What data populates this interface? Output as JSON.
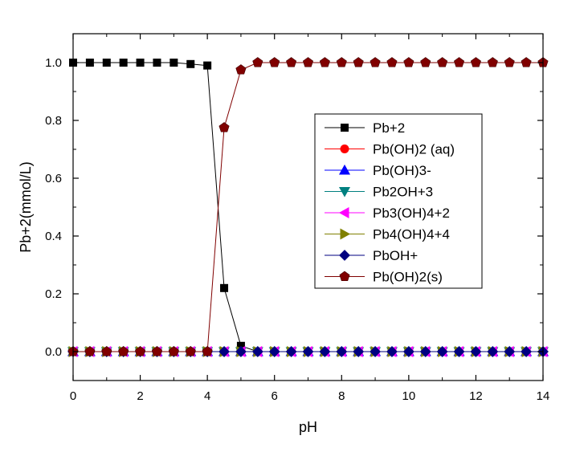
{
  "chart_data": {
    "type": "line",
    "title": "",
    "xlabel": "pH",
    "ylabel": "Pb+2(mmol/L)",
    "xlim": [
      0,
      14
    ],
    "ylim": [
      -0.1,
      1.1
    ],
    "x_ticks": [
      "0",
      "2",
      "4",
      "6",
      "8",
      "10",
      "12",
      "14"
    ],
    "y_ticks": [
      "0.0",
      "0.2",
      "0.4",
      "0.6",
      "0.8",
      "1.0"
    ],
    "grid": false,
    "legend_position": "center-right",
    "x": [
      0,
      0.5,
      1,
      1.5,
      2,
      2.5,
      3,
      3.5,
      4,
      4.5,
      5,
      5.5,
      6,
      6.5,
      7,
      7.5,
      8,
      8.5,
      9,
      9.5,
      10,
      10.5,
      11,
      11.5,
      12,
      12.5,
      13,
      13.5,
      14
    ],
    "series": [
      {
        "name": "Pb+2",
        "marker": "square",
        "color": "#000000",
        "values": [
          1.0,
          1.0,
          1.0,
          1.0,
          1.0,
          1.0,
          1.0,
          0.995,
          0.99,
          0.22,
          0.02,
          0,
          0,
          0,
          0,
          0,
          0,
          0,
          0,
          0,
          0,
          0,
          0,
          0,
          0,
          0,
          0,
          0,
          0
        ]
      },
      {
        "name": "Pb(OH)2 (aq)",
        "marker": "circle",
        "color": "#ff0000",
        "values": [
          0,
          0,
          0,
          0,
          0,
          0,
          0,
          0,
          0,
          0,
          0,
          0,
          0,
          0,
          0,
          0,
          0,
          0,
          0,
          0,
          0,
          0,
          0,
          0,
          0,
          0,
          0,
          0,
          0
        ]
      },
      {
        "name": "Pb(OH)3-",
        "marker": "triangle-up",
        "color": "#0000ff",
        "values": [
          0,
          0,
          0,
          0,
          0,
          0,
          0,
          0,
          0,
          0,
          0,
          0,
          0,
          0,
          0,
          0,
          0,
          0,
          0,
          0,
          0,
          0,
          0,
          0,
          0,
          0,
          0,
          0,
          0
        ]
      },
      {
        "name": "Pb2OH+3",
        "marker": "triangle-down",
        "color": "#008080",
        "values": [
          0,
          0,
          0,
          0,
          0,
          0,
          0,
          0,
          0,
          0,
          0,
          0,
          0,
          0,
          0,
          0,
          0,
          0,
          0,
          0,
          0,
          0,
          0,
          0,
          0,
          0,
          0,
          0,
          0
        ]
      },
      {
        "name": "Pb3(OH)4+2",
        "marker": "triangle-left",
        "color": "#ff00ff",
        "values": [
          0,
          0,
          0,
          0,
          0,
          0,
          0,
          0,
          0,
          0,
          0,
          0,
          0,
          0,
          0,
          0,
          0,
          0,
          0,
          0,
          0,
          0,
          0,
          0,
          0,
          0,
          0,
          0,
          0
        ]
      },
      {
        "name": "Pb4(OH)4+4",
        "marker": "triangle-right",
        "color": "#808000",
        "values": [
          0,
          0,
          0,
          0,
          0,
          0,
          0,
          0,
          0,
          0,
          0,
          0,
          0,
          0,
          0,
          0,
          0,
          0,
          0,
          0,
          0,
          0,
          0,
          0,
          0,
          0,
          0,
          0,
          0
        ]
      },
      {
        "name": "PbOH+",
        "marker": "diamond",
        "color": "#000080",
        "values": [
          0,
          0,
          0,
          0,
          0,
          0,
          0,
          0,
          0,
          0,
          0,
          0,
          0,
          0,
          0,
          0,
          0,
          0,
          0,
          0,
          0,
          0,
          0,
          0,
          0,
          0,
          0,
          0,
          0
        ]
      },
      {
        "name": "Pb(OH)2(s)",
        "marker": "pentagon",
        "color": "#800000",
        "values": [
          0,
          0,
          0,
          0,
          0,
          0,
          0,
          0,
          0,
          0.775,
          0.975,
          1.0,
          1.0,
          1.0,
          1.0,
          1.0,
          1.0,
          1.0,
          1.0,
          1.0,
          1.0,
          1.0,
          1.0,
          1.0,
          1.0,
          1.0,
          1.0,
          1.0,
          1.0
        ]
      }
    ]
  }
}
